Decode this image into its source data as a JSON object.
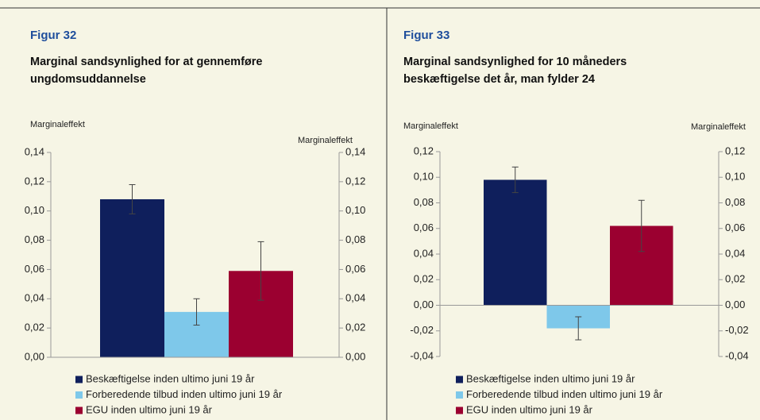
{
  "chart_data": [
    {
      "type": "bar",
      "label": "Figur 32",
      "title": "Marginal sandsynlighed for at gennemføre ungdomsuddannelse",
      "ylabel": "Marginaleffekt",
      "y2label": "Marginaleffekt",
      "ylim": [
        0,
        0.14
      ],
      "yticks": [
        {
          "value": 0,
          "label": "0,00"
        },
        {
          "value": 0.02,
          "label": "0,02"
        },
        {
          "value": 0.04,
          "label": "0,04"
        },
        {
          "value": 0.06,
          "label": "0,06"
        },
        {
          "value": 0.08,
          "label": "0,08"
        },
        {
          "value": 0.1,
          "label": "0,10"
        },
        {
          "value": 0.12,
          "label": "0,12"
        },
        {
          "value": 0.14,
          "label": "0,14"
        }
      ],
      "y2lim": [
        0,
        0.14
      ],
      "y2ticks": [
        {
          "value": 0,
          "label": "0,00"
        },
        {
          "value": 0.02,
          "label": "0,02"
        },
        {
          "value": 0.04,
          "label": "0,04"
        },
        {
          "value": 0.06,
          "label": "0,06"
        },
        {
          "value": 0.08,
          "label": "0,08"
        },
        {
          "value": 0.1,
          "label": "0,10"
        },
        {
          "value": 0.12,
          "label": "0,12"
        },
        {
          "value": 0.14,
          "label": "0,14"
        }
      ],
      "series": [
        {
          "name": "Beskæftigelse inden ultimo juni 19 år",
          "color": "#0f1f5c",
          "values": [
            0.108
          ],
          "errors": [
            0.01
          ]
        },
        {
          "name": "Forberedende tilbud inden ultimo juni 19 år",
          "color": "#7ec8ea",
          "values": [
            0.031
          ],
          "errors": [
            0.009
          ]
        },
        {
          "name": "EGU inden ultimo juni 19 år",
          "color": "#9b0030",
          "values": [
            0.059
          ],
          "errors": [
            0.02
          ]
        }
      ]
    },
    {
      "type": "bar",
      "label": "Figur 33",
      "title": "Marginal sandsynlighed for 10 måneders beskæftigelse det år, man fylder 24",
      "ylabel": "Marginaleffekt",
      "y2label": "Marginaleffekt",
      "ylim": [
        -0.04,
        0.12
      ],
      "yticks": [
        {
          "value": -0.04,
          "label": "-0,04"
        },
        {
          "value": -0.02,
          "label": "-0,02"
        },
        {
          "value": 0,
          "label": "0,00"
        },
        {
          "value": 0.02,
          "label": "0,02"
        },
        {
          "value": 0.04,
          "label": "0,04"
        },
        {
          "value": 0.06,
          "label": "0,06"
        },
        {
          "value": 0.08,
          "label": "0,08"
        },
        {
          "value": 0.1,
          "label": "0,10"
        },
        {
          "value": 0.12,
          "label": "0,12"
        }
      ],
      "y2lim": [
        -0.04,
        0.12
      ],
      "y2ticks": [
        {
          "value": -0.04,
          "label": "-0,04"
        },
        {
          "value": -0.02,
          "label": "-0,02"
        },
        {
          "value": 0,
          "label": "0,00"
        },
        {
          "value": 0.02,
          "label": "0,02"
        },
        {
          "value": 0.04,
          "label": "0,04"
        },
        {
          "value": 0.06,
          "label": "0,06"
        },
        {
          "value": 0.08,
          "label": "0,08"
        },
        {
          "value": 0.1,
          "label": "0,10"
        },
        {
          "value": 0.12,
          "label": "0,12"
        }
      ],
      "series": [
        {
          "name": "Beskæftigelse inden ultimo juni 19 år",
          "color": "#0f1f5c",
          "values": [
            0.098
          ],
          "errors": [
            0.01
          ]
        },
        {
          "name": "Forberedende tilbud inden ultimo juni 19 år",
          "color": "#7ec8ea",
          "values": [
            -0.018
          ],
          "errors": [
            0.009
          ]
        },
        {
          "name": "EGU inden ultimo juni 19 år",
          "color": "#9b0030",
          "values": [
            0.062
          ],
          "errors": [
            0.02
          ]
        }
      ]
    }
  ]
}
